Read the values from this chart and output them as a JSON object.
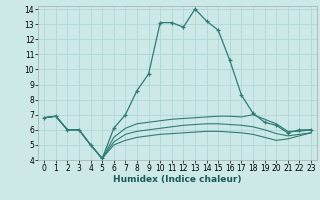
{
  "xlabel": "Humidex (Indice chaleur)",
  "xlim": [
    -0.5,
    23.5
  ],
  "ylim": [
    4,
    14.2
  ],
  "yticks": [
    4,
    5,
    6,
    7,
    8,
    9,
    10,
    11,
    12,
    13,
    14
  ],
  "xticks": [
    0,
    1,
    2,
    3,
    4,
    5,
    6,
    7,
    8,
    9,
    10,
    11,
    12,
    13,
    14,
    15,
    16,
    17,
    18,
    19,
    20,
    21,
    22,
    23
  ],
  "bg_color": "#cce9e8",
  "grid_color": "#b0d8d6",
  "line_color": "#2d7d72",
  "lines": [
    {
      "x": [
        0,
        1,
        2,
        3,
        4,
        5,
        6,
        7,
        8,
        9,
        10,
        11,
        12,
        13,
        14,
        15,
        16,
        17,
        18,
        19,
        20,
        21,
        22,
        23
      ],
      "y": [
        6.8,
        6.9,
        6.0,
        6.0,
        5.0,
        4.1,
        6.1,
        7.0,
        8.6,
        9.7,
        13.1,
        13.1,
        12.8,
        14.0,
        13.2,
        12.6,
        10.6,
        8.3,
        7.1,
        6.5,
        6.3,
        5.8,
        6.0,
        6.0
      ],
      "marker": true
    },
    {
      "x": [
        0,
        1,
        2,
        3,
        4,
        5,
        6,
        7,
        8,
        9,
        10,
        11,
        12,
        13,
        14,
        15,
        16,
        17,
        18,
        19,
        20,
        21,
        22,
        23
      ],
      "y": [
        6.8,
        6.9,
        6.0,
        6.0,
        5.0,
        4.1,
        5.5,
        6.1,
        6.4,
        6.5,
        6.6,
        6.7,
        6.75,
        6.8,
        6.85,
        6.9,
        6.9,
        6.85,
        7.0,
        6.7,
        6.4,
        5.9,
        5.9,
        6.0
      ],
      "marker": false
    },
    {
      "x": [
        0,
        1,
        2,
        3,
        4,
        5,
        6,
        7,
        8,
        9,
        10,
        11,
        12,
        13,
        14,
        15,
        16,
        17,
        18,
        19,
        20,
        21,
        22,
        23
      ],
      "y": [
        6.8,
        6.9,
        6.0,
        6.0,
        5.0,
        4.1,
        5.2,
        5.7,
        5.9,
        6.0,
        6.1,
        6.2,
        6.3,
        6.35,
        6.4,
        6.4,
        6.35,
        6.3,
        6.2,
        6.0,
        5.75,
        5.6,
        5.7,
        5.8
      ],
      "marker": false
    },
    {
      "x": [
        0,
        1,
        2,
        3,
        4,
        5,
        6,
        7,
        8,
        9,
        10,
        11,
        12,
        13,
        14,
        15,
        16,
        17,
        18,
        19,
        20,
        21,
        22,
        23
      ],
      "y": [
        6.8,
        6.9,
        6.0,
        6.0,
        5.0,
        4.1,
        5.0,
        5.3,
        5.5,
        5.6,
        5.7,
        5.75,
        5.8,
        5.85,
        5.9,
        5.9,
        5.85,
        5.8,
        5.7,
        5.5,
        5.3,
        5.4,
        5.6,
        5.8
      ],
      "marker": false
    }
  ]
}
